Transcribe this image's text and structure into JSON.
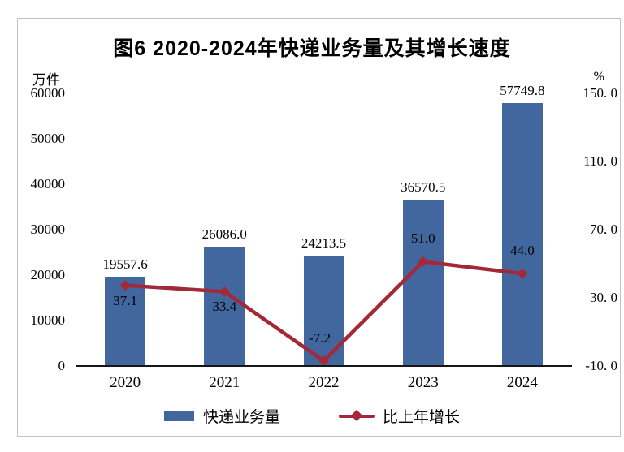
{
  "accent_colors": {
    "bar_blue": "#42679e",
    "line_red": "#a42938",
    "frame_gray": "#c3c3c3"
  },
  "chart_data": {
    "type": "combo",
    "title": "图6 2020-2024年快递业务量及其增长速度",
    "categories": [
      "2020",
      "2021",
      "2022",
      "2023",
      "2024"
    ],
    "series": [
      {
        "name": "快递业务量",
        "type": "bar",
        "axis": "left",
        "color": "#42679e",
        "values": [
          19557.6,
          26086.0,
          24213.5,
          36570.5,
          57749.8
        ],
        "labels": [
          "19557.6",
          "26086.0",
          "24213.5",
          "36570.5",
          "57749.8"
        ]
      },
      {
        "name": "比上年增长",
        "type": "line",
        "axis": "right",
        "color": "#a42938",
        "values": [
          37.1,
          33.4,
          -7.2,
          51.0,
          44.0
        ],
        "labels": [
          "37.1",
          "33.4",
          "-7.2",
          "51.0",
          "44.0"
        ],
        "label_positions": [
          "below",
          "below",
          "above",
          "above",
          "above"
        ]
      }
    ],
    "left_axis": {
      "unit": "万件",
      "min": 0,
      "max": 60000,
      "step": 10000,
      "ticks": [
        {
          "v": 60000,
          "label": "60000"
        },
        {
          "v": 50000,
          "label": "50000"
        },
        {
          "v": 40000,
          "label": "40000"
        },
        {
          "v": 30000,
          "label": "30000"
        },
        {
          "v": 20000,
          "label": "20000"
        },
        {
          "v": 10000,
          "label": "10000"
        },
        {
          "v": 0,
          "label": "0"
        }
      ]
    },
    "right_axis": {
      "unit": "%",
      "min": -10,
      "max": 150,
      "step": 40,
      "ticks": [
        {
          "v": 150,
          "label": "150. 0"
        },
        {
          "v": 110,
          "label": "110. 0"
        },
        {
          "v": 70,
          "label": "70. 0"
        },
        {
          "v": 30,
          "label": "30. 0"
        },
        {
          "v": -10,
          "label": "-10. 0"
        }
      ]
    },
    "legend": {
      "position": "bottom",
      "entries": [
        "快递业务量",
        "比上年增长"
      ]
    },
    "grid": false
  }
}
